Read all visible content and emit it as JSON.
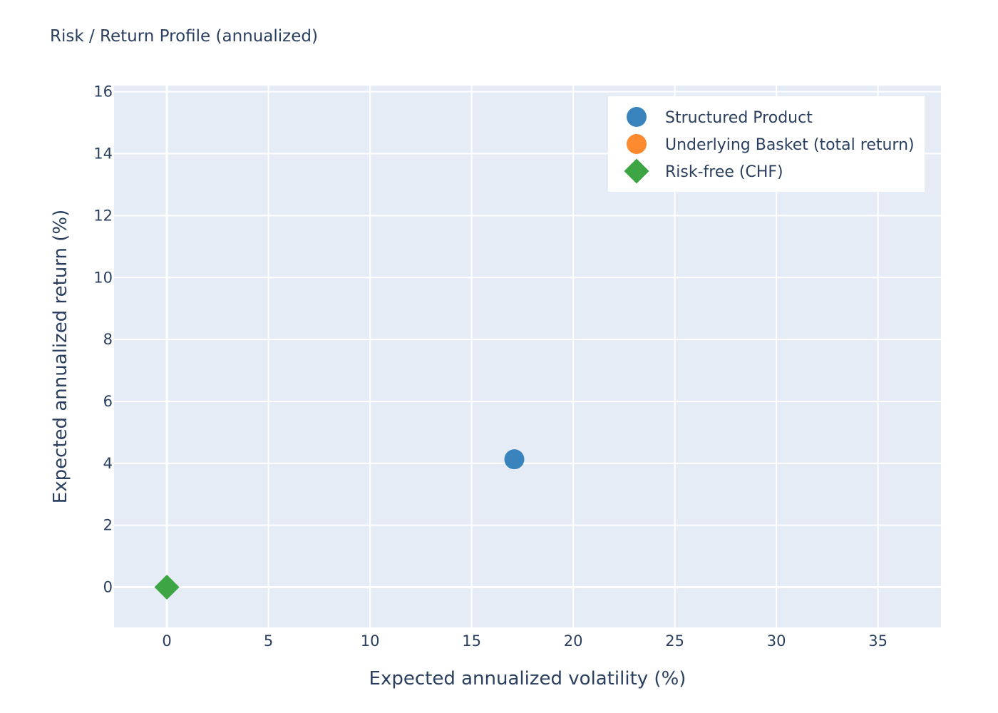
{
  "chart_data": {
    "type": "scatter",
    "title": "Risk / Return Profile (annualized)",
    "xlabel": "Expected annualized volatility (%)",
    "ylabel": "Expected annualized return (%)",
    "xlim": [
      -2.6,
      38.1
    ],
    "ylim": [
      -1.3,
      16.2
    ],
    "xticks": [
      0,
      5,
      10,
      15,
      20,
      25,
      30,
      35
    ],
    "yticks": [
      0,
      2,
      4,
      6,
      8,
      10,
      12,
      14,
      16
    ],
    "grid": true,
    "legend_position": "top-right",
    "series": [
      {
        "name": "Structured Product",
        "symbol": "circle",
        "color": "#3a84be",
        "x": [
          17.1
        ],
        "y": [
          4.13
        ]
      },
      {
        "name": "Underlying Basket (total return)",
        "symbol": "circle",
        "color": "#fd8a2e",
        "x": [],
        "y": []
      },
      {
        "name": "Risk-free (CHF)",
        "symbol": "diamond",
        "color": "#3ea544",
        "x": [
          0
        ],
        "y": [
          0
        ]
      }
    ]
  },
  "colors": {
    "plot_background": "#e5ecf6",
    "grid": "#ffffff",
    "text": "#2a3f5f"
  }
}
